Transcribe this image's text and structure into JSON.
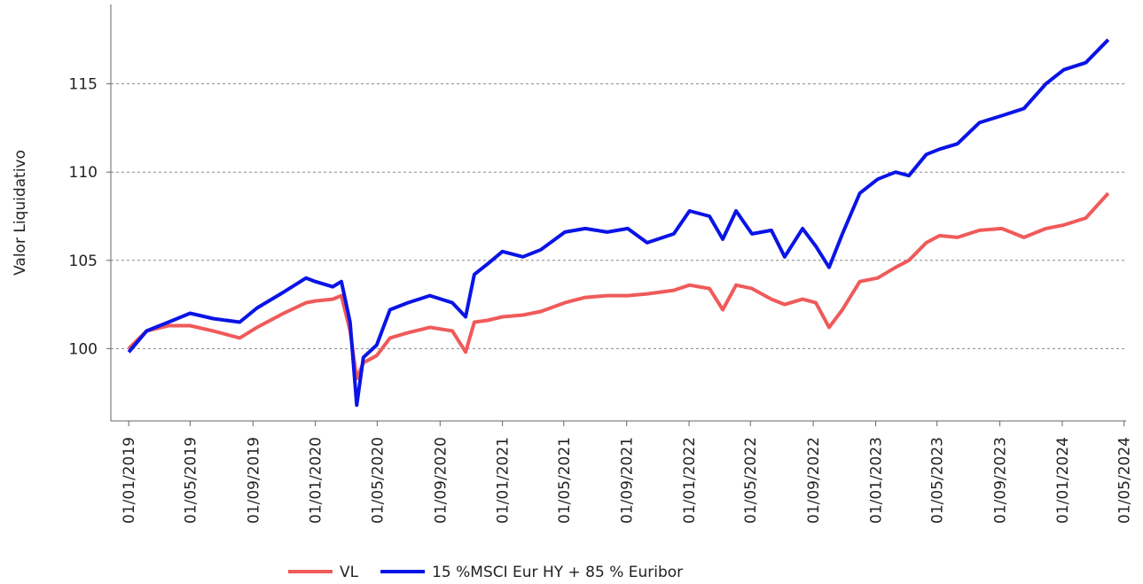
{
  "chart_data": {
    "type": "line",
    "y_label": "Valor Liquidativo",
    "x": [
      "01/01/2019",
      "05/02/2019",
      "20/03/2019",
      "01/05/2019",
      "15/06/2019",
      "06/08/2019",
      "09/09/2019",
      "31/10/2019",
      "14/12/2019",
      "01/01/2020",
      "04/02/2020",
      "21/02/2020",
      "09/03/2020",
      "22/03/2020",
      "04/04/2020",
      "30/04/2020",
      "26/05/2020",
      "30/06/2020",
      "12/08/2020",
      "25/09/2020",
      "21/10/2020",
      "07/11/2020",
      "03/12/2020",
      "01/01/2021",
      "10/02/2021",
      "17/03/2021",
      "03/05/2021",
      "12/06/2021",
      "25/07/2021",
      "03/09/2021",
      "11/10/2021",
      "02/12/2021",
      "02/01/2022",
      "10/02/2022",
      "08/03/2022",
      "03/04/2022",
      "04/05/2022",
      "11/06/2022",
      "07/07/2022",
      "11/08/2022",
      "06/09/2022",
      "02/10/2022",
      "28/10/2022",
      "01/12/2022",
      "05/01/2023",
      "09/02/2023",
      "07/03/2023",
      "10/04/2023",
      "06/05/2023",
      "10/06/2023",
      "23/07/2023",
      "05/09/2023",
      "18/10/2023",
      "30/11/2023",
      "04/01/2024",
      "16/02/2024",
      "31/03/2024"
    ],
    "series": [
      {
        "name": "VL",
        "color": "#f05a5a",
        "values": [
          100.0,
          101.0,
          101.3,
          101.3,
          101.0,
          100.6,
          101.2,
          102.0,
          102.6,
          102.7,
          102.8,
          103.0,
          101.0,
          98.3,
          99.2,
          99.6,
          100.6,
          100.9,
          101.2,
          101.0,
          99.8,
          101.5,
          101.6,
          101.8,
          101.9,
          102.1,
          102.6,
          102.9,
          103.0,
          103.0,
          103.1,
          103.3,
          103.6,
          103.4,
          102.2,
          103.6,
          103.4,
          102.8,
          102.5,
          102.8,
          102.6,
          101.2,
          102.2,
          103.8,
          104.0,
          104.6,
          105.0,
          106.0,
          106.4,
          106.3,
          106.7,
          106.8,
          106.3,
          106.8,
          107.0,
          107.4,
          108.8
        ]
      },
      {
        "name": "15 %MSCI Eur HY + 85 % Euribor",
        "color": "#0a14e6",
        "values": [
          99.8,
          101.0,
          101.5,
          102.0,
          101.7,
          101.5,
          102.3,
          103.2,
          104.0,
          103.8,
          103.5,
          103.8,
          101.5,
          96.8,
          99.5,
          100.2,
          102.2,
          102.6,
          103.0,
          102.6,
          101.8,
          104.2,
          104.8,
          105.5,
          105.2,
          105.6,
          106.6,
          106.8,
          106.6,
          106.8,
          106.0,
          106.5,
          107.8,
          107.5,
          106.2,
          107.8,
          106.5,
          106.7,
          105.2,
          106.8,
          105.8,
          104.6,
          106.5,
          108.8,
          109.6,
          110.0,
          109.8,
          111.0,
          111.3,
          111.6,
          112.8,
          113.2,
          113.6,
          115.0,
          115.8,
          116.2,
          117.5
        ]
      }
    ],
    "xlim": [
      "27/11/2018",
      "05/05/2024"
    ],
    "xticks": [
      "01/01/2019",
      "01/05/2019",
      "01/09/2019",
      "01/01/2020",
      "01/05/2020",
      "01/09/2020",
      "01/01/2021",
      "01/05/2021",
      "01/09/2021",
      "01/01/2022",
      "01/05/2022",
      "01/09/2022",
      "01/01/2023",
      "01/05/2023",
      "01/09/2023",
      "01/01/2024",
      "01/05/2024"
    ],
    "ylim": [
      95.9,
      119.5
    ],
    "yticks": [
      100,
      105,
      110,
      115
    ],
    "grid": true,
    "legend": "bottom"
  }
}
